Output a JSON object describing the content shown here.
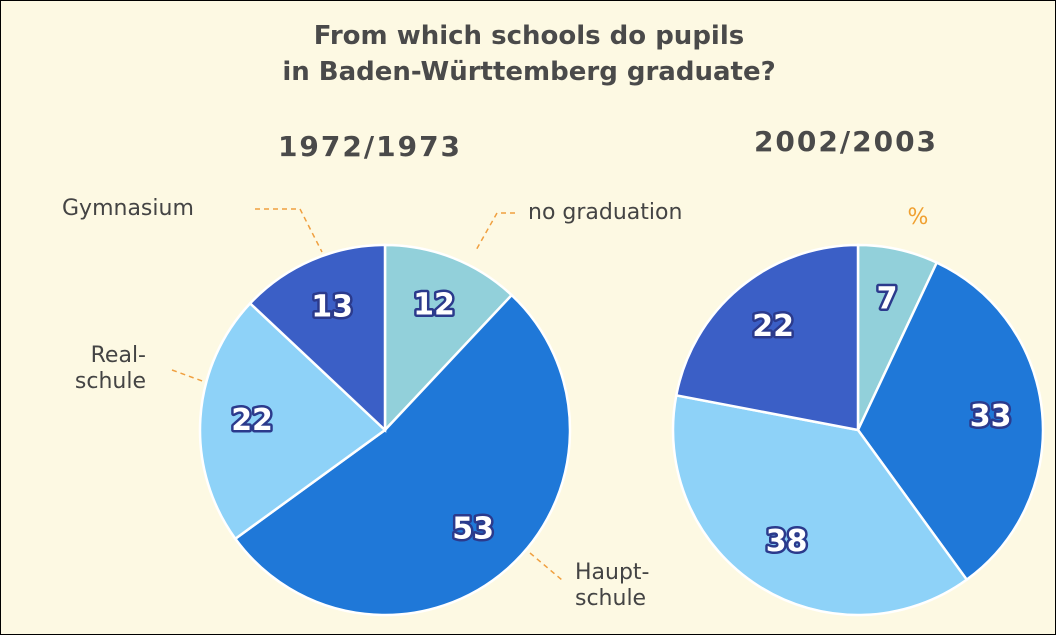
{
  "title": [
    "From which schools do pupils",
    "in Baden-Württemberg graduate?"
  ],
  "categories": [
    "no graduation",
    "Haupt-\nschule",
    "Real-\nschule",
    "Gymnasium"
  ],
  "unit": "%",
  "chart_data": [
    {
      "type": "pie",
      "title": "1972/1973",
      "values": [
        12,
        53,
        22,
        13
      ],
      "colors": [
        "#92d0da",
        "#1f78d8",
        "#8ed2f8",
        "#3b5fc6"
      ]
    },
    {
      "type": "pie",
      "title": "2002/2003",
      "values": [
        7,
        33,
        38,
        22
      ],
      "colors": [
        "#92d0da",
        "#1f78d8",
        "#8ed2f8",
        "#3b5fc6"
      ]
    }
  ]
}
